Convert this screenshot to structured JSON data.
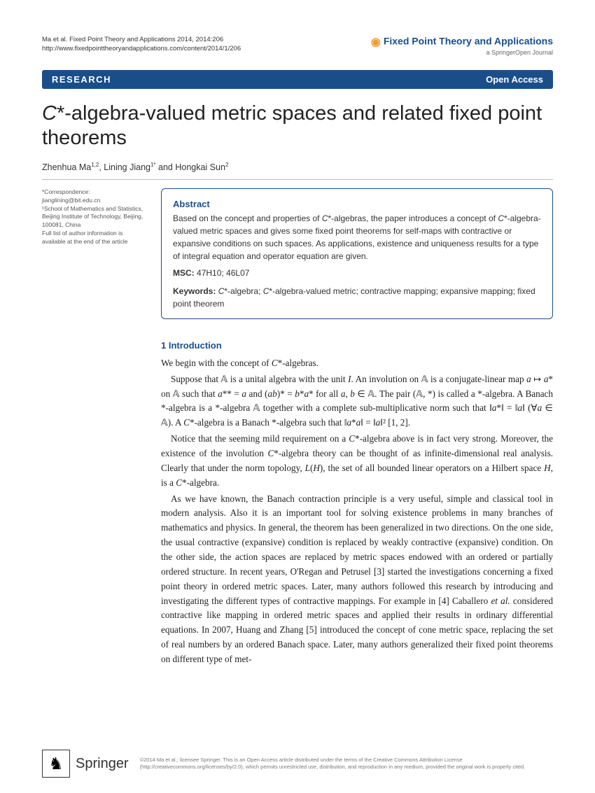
{
  "header": {
    "citation_line1": "Ma et al. Fixed Point Theory and Applications 2014, 2014:206",
    "citation_line2": "http://www.fixedpointtheoryandapplications.com/content/2014/1/206",
    "journal_title": "Fixed Point Theory and Applications",
    "journal_subtitle": "a SpringerOpen Journal"
  },
  "band": {
    "left": "RESEARCH",
    "right": "Open Access"
  },
  "title": "C*-algebra-valued metric spaces and related fixed point theorems",
  "authors_html": "Zhenhua Ma",
  "authors_rest": ", Lining Jiang",
  "authors_end": " and Hongkai Sun",
  "sup1": "1,2",
  "sup2": "1*",
  "sup3": "2",
  "correspondence": {
    "label": "*Correspondence:",
    "email": "jianglining@bit.edu.cn",
    "aff": "¹School of Mathematics and Statistics, Beijing Institute of Technology, Beijing, 100081, China",
    "note": "Full list of author information is available at the end of the article"
  },
  "abstract": {
    "heading": "Abstract",
    "text": "Based on the concept and properties of C*-algebras, the paper introduces a concept of C*-algebra-valued metric spaces and gives some fixed point theorems for self-maps with contractive or expansive conditions on such spaces. As applications, existence and uniqueness results for a type of integral equation and operator equation are given.",
    "msc_label": "MSC:",
    "msc_codes": "47H10; 46L07",
    "kw_label": "Keywords:",
    "kw_text": "C*-algebra; C*-algebra-valued metric; contractive mapping; expansive mapping; fixed point theorem"
  },
  "section_heading": "1 Introduction",
  "p1": "We begin with the concept of C*-algebras.",
  "p2": "Suppose that 𝔸 is a unital algebra with the unit I. An involution on 𝔸 is a conjugate-linear map a ↦ a* on 𝔸 such that a** = a and (ab)* = b*a* for all a, b ∈ 𝔸. The pair (𝔸, *) is called a *-algebra. A Banach *-algebra is a *-algebra 𝔸 together with a complete sub-multiplicative norm such that ‖a*‖ = ‖a‖ (∀a ∈ 𝔸). A C*-algebra is a Banach *-algebra such that ‖a*a‖ = ‖a‖² [1, 2].",
  "p3": "Notice that the seeming mild requirement on a C*-algebra above is in fact very strong. Moreover, the existence of the involution C*-algebra theory can be thought of as infinite-dimensional real analysis. Clearly that under the norm topology, L(H), the set of all bounded linear operators on a Hilbert space H, is a C*-algebra.",
  "p4": "As we have known, the Banach contraction principle is a very useful, simple and classical tool in modern analysis. Also it is an important tool for solving existence problems in many branches of mathematics and physics. In general, the theorem has been generalized in two directions. On the one side, the usual contractive (expansive) condition is replaced by weakly contractive (expansive) condition. On the other side, the action spaces are replaced by metric spaces endowed with an ordered or partially ordered structure. In recent years, O'Regan and Petrusel [3] started the investigations concerning a fixed point theory in ordered metric spaces. Later, many authors followed this research by introducing and investigating the different types of contractive mappings. For example in [4] Caballero et al. considered contractive like mapping in ordered metric spaces and applied their results in ordinary differential equations. In 2007, Huang and Zhang [5] introduced the concept of cone metric space, replacing the set of real numbers by an ordered Banach space. Later, many authors generalized their fixed point theorems on different type of met-",
  "footer": {
    "brand": "Springer",
    "copyright": "©2014 Ma et al.; licensee Springer. This is an Open Access article distributed under the terms of the Creative Commons Attribution License (http://creativecommons.org/licenses/by/2.0), which permits unrestricted use, distribution, and reproduction in any medium, provided the original work is properly cited."
  },
  "colors": {
    "brand_blue": "#1a4e8a",
    "orange": "#f49b2e"
  }
}
